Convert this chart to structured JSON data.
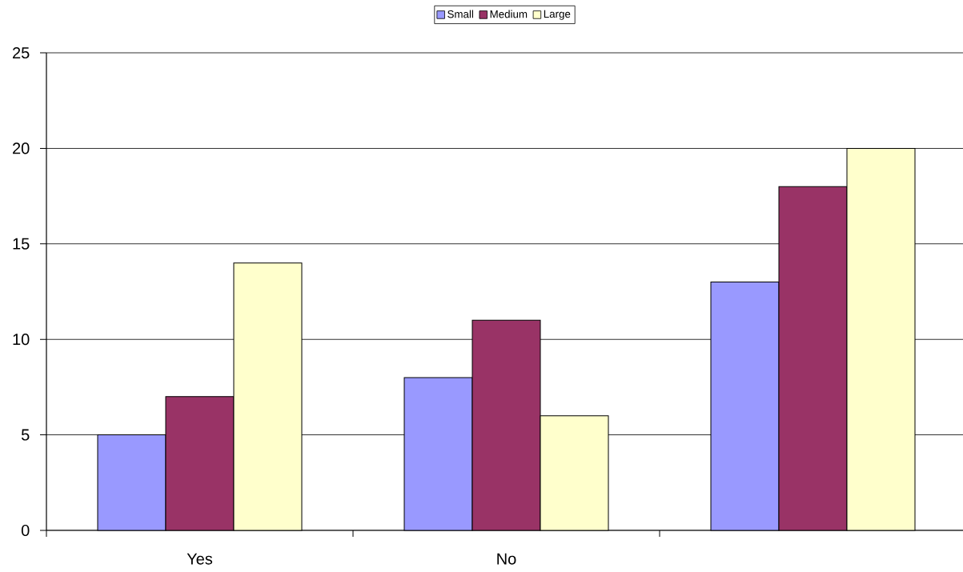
{
  "chart_data": {
    "type": "bar",
    "categories": [
      "Yes",
      "No",
      null
    ],
    "series": [
      {
        "name": "Small",
        "color": "#9999ff",
        "values": [
          5,
          8,
          13
        ]
      },
      {
        "name": "Medium",
        "color": "#993366",
        "values": [
          7,
          11,
          18
        ]
      },
      {
        "name": "Large",
        "color": "#ffffcc",
        "values": [
          14,
          6,
          20
        ]
      }
    ],
    "ylim": [
      0,
      25
    ],
    "yticks": [
      0,
      5,
      10,
      15,
      20,
      25
    ],
    "grid": "y",
    "legend": "top"
  }
}
